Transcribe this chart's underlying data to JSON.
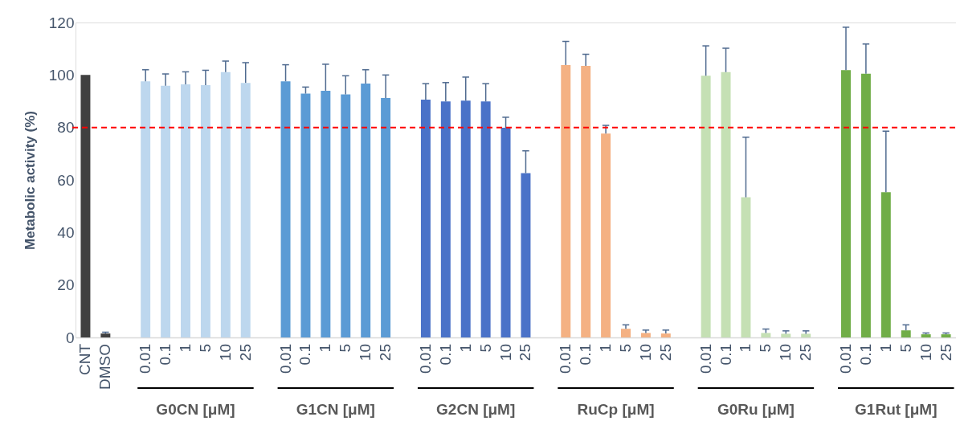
{
  "chart_data": {
    "type": "bar",
    "ylabel": "Metabolic activity (%)",
    "categories": [
      "CNT",
      "DMSO",
      null,
      "0.01",
      "0.1",
      "1",
      "5",
      "10",
      "25",
      null,
      "0.01",
      "0.1",
      "1",
      "5",
      "10",
      "25",
      null,
      "0.01",
      "0.1",
      "1",
      "5",
      "10",
      "25",
      null,
      "0.01",
      "0.1",
      "1",
      "5",
      "10",
      "25",
      null,
      "0.01",
      "0.1",
      "1",
      "5",
      "10",
      "25",
      null,
      "0.01",
      "0.1",
      "1",
      "5",
      "10",
      "25"
    ],
    "values": [
      100,
      1.5,
      null,
      97.6,
      95.9,
      96.4,
      96.1,
      101.1,
      97.0,
      null,
      97.6,
      92.9,
      94.0,
      92.6,
      96.7,
      91.2,
      null,
      90.6,
      89.9,
      90.2,
      89.9,
      79.9,
      62.6,
      null,
      103.8,
      103.5,
      77.7,
      3.3,
      1.7,
      1.5,
      null,
      99.7,
      101.1,
      53.4,
      1.7,
      1.4,
      1.4,
      null,
      101.9,
      100.5,
      55.3,
      2.7,
      1.2,
      1.2
    ],
    "errors": [
      null,
      [
        1.5,
        2.0
      ],
      null,
      [
        97.6,
        102.0
      ],
      [
        95.9,
        100.4
      ],
      [
        96.4,
        101.2
      ],
      [
        96.1,
        101.8
      ],
      [
        101.1,
        105.3
      ],
      [
        97.0,
        104.7
      ],
      null,
      [
        97.6,
        103.9
      ],
      [
        92.9,
        95.4
      ],
      [
        94.0,
        104.1
      ],
      [
        92.6,
        99.7
      ],
      [
        96.7,
        102.0
      ],
      [
        91.2,
        100.0
      ],
      null,
      [
        90.6,
        96.7
      ],
      [
        89.9,
        97.1
      ],
      [
        90.2,
        99.2
      ],
      [
        89.9,
        96.7
      ],
      [
        79.9,
        83.9
      ],
      [
        62.6,
        71.1
      ],
      null,
      [
        103.8,
        112.8
      ],
      [
        103.5,
        107.9
      ],
      [
        77.7,
        80.8
      ],
      [
        3.3,
        4.8
      ],
      [
        1.7,
        2.8
      ],
      [
        1.5,
        2.8
      ],
      null,
      [
        99.7,
        111.1
      ],
      [
        101.1,
        110.2
      ],
      [
        53.4,
        76.3
      ],
      [
        1.7,
        3.2
      ],
      [
        1.4,
        2.5
      ],
      [
        1.4,
        2.5
      ],
      null,
      [
        101.9,
        118.2
      ],
      [
        100.5,
        111.8
      ],
      [
        55.3,
        78.6
      ],
      [
        2.7,
        4.8
      ],
      [
        1.2,
        1.7
      ],
      [
        1.2,
        1.7
      ]
    ],
    "colors": [
      "#404040",
      "#404040",
      null,
      "#bdd7ee",
      "#bdd7ee",
      "#bdd7ee",
      "#bdd7ee",
      "#bdd7ee",
      "#bdd7ee",
      null,
      "#5b9bd5",
      "#5b9bd5",
      "#5b9bd5",
      "#5b9bd5",
      "#5b9bd5",
      "#5b9bd5",
      null,
      "#4a72c8",
      "#4a72c8",
      "#4a72c8",
      "#4a72c8",
      "#4a72c8",
      "#4a72c8",
      null,
      "#f4b183",
      "#f4b183",
      "#f4b183",
      "#f4b183",
      "#f4b183",
      "#f4b183",
      null,
      "#c5e0b4",
      "#c5e0b4",
      "#c5e0b4",
      "#c5e0b4",
      "#c5e0b4",
      "#c5e0b4",
      null,
      "#70ad47",
      "#70ad47",
      "#70ad47",
      "#70ad47",
      "#70ad47",
      "#70ad47"
    ],
    "ylim": [
      0,
      120
    ],
    "yticks": [
      0,
      20,
      40,
      60,
      80,
      100,
      120
    ],
    "grid": false,
    "ref_lines": [
      {
        "axis": "y",
        "value": 80,
        "color": "#ff0000",
        "line_style": "dashed"
      }
    ],
    "annotations": [
      "G0CN [μM]",
      "G1CN [μM]",
      "G2CN [μM]",
      "RuCp [μM]",
      "G0Ru [μM]",
      "G1Rut [μM]"
    ]
  }
}
